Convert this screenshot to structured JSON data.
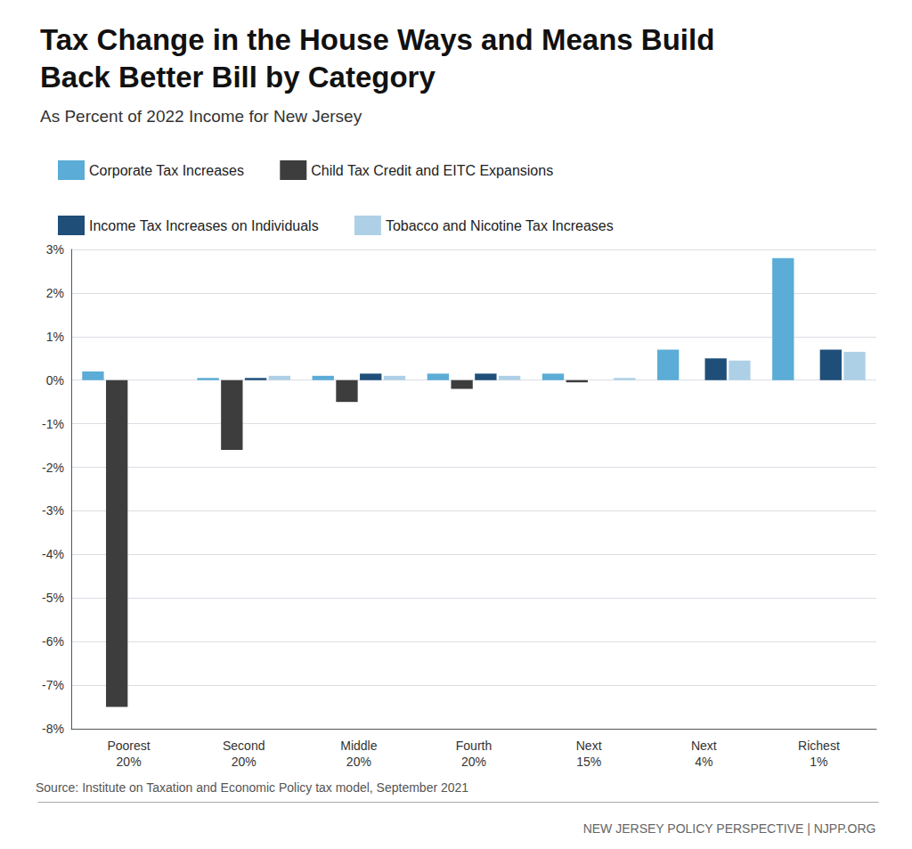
{
  "chart_data": {
    "type": "bar",
    "title": "Tax Change in the House Ways and Means Build\nBack Better Bill by Category",
    "subtitle": "As Percent of 2022 Income for New Jersey",
    "annotations": [
      "Source: Institute on Taxation and Economic Policy tax model, September 2021",
      "NEW JERSEY POLICY PERSPECTIVE | NJPP.ORG"
    ],
    "categories": [
      "Poorest\n20%",
      "Second\n20%",
      "Middle\n20%",
      "Fourth\n20%",
      "Next\n15%",
      "Next\n4%",
      "Richest\n1%"
    ],
    "series": [
      {
        "name": "Corporate Tax Increases",
        "color": "#5bacd6",
        "values": [
          0.2,
          0.05,
          0.1,
          0.15,
          0.15,
          0.7,
          2.8
        ]
      },
      {
        "name": "Child Tax Credit and EITC Expansions",
        "color": "#3d3d3d",
        "values": [
          -7.5,
          -1.6,
          -0.5,
          -0.2,
          -0.05,
          0.0,
          0.0
        ]
      },
      {
        "name": "Income Tax Increases on Individuals",
        "color": "#1f4e79",
        "values": [
          0.0,
          0.05,
          0.15,
          0.15,
          0.0,
          0.5,
          0.7
        ]
      },
      {
        "name": "Tobacco and Nicotine Tax Increases",
        "color": "#aed0e6",
        "values": [
          0.0,
          0.1,
          0.1,
          0.1,
          0.05,
          0.45,
          0.65
        ]
      }
    ],
    "ylim": [
      -8,
      3
    ],
    "yticks": [
      {
        "value": -8,
        "label": "-8%"
      },
      {
        "value": -7,
        "label": "-7%"
      },
      {
        "value": -6,
        "label": "-6%"
      },
      {
        "value": -5,
        "label": "-5%"
      },
      {
        "value": -4,
        "label": "-4%"
      },
      {
        "value": -3,
        "label": "-3%"
      },
      {
        "value": -2,
        "label": "-2%"
      },
      {
        "value": -1,
        "label": "-1%"
      },
      {
        "value": 0,
        "label": "0%"
      },
      {
        "value": 1,
        "label": "1%"
      },
      {
        "value": 2,
        "label": "2%"
      },
      {
        "value": 3,
        "label": "3%"
      }
    ],
    "grid": true,
    "legend": "top"
  }
}
